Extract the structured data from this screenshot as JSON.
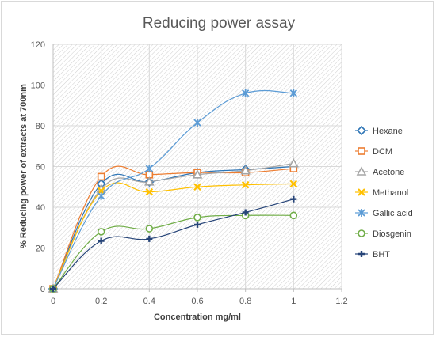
{
  "chart_data": {
    "type": "line",
    "title": "Reducing power assay",
    "xlabel": "Concentration mg/ml",
    "ylabel": "% Reducing power of extracts at 700nm",
    "xlim": [
      0,
      1.2
    ],
    "ylim": [
      0,
      120
    ],
    "xticks": [
      0,
      0.2,
      0.4,
      0.6,
      0.8,
      1,
      1.2
    ],
    "yticks": [
      0,
      20,
      40,
      60,
      80,
      100,
      120
    ],
    "smooth": true,
    "grid": true,
    "legend_position": "right",
    "x": [
      0,
      0.2,
      0.4,
      0.6,
      0.8,
      1
    ],
    "series": [
      {
        "name": "Hexane",
        "color": "#2e75b6",
        "marker": "diamond",
        "values": [
          0,
          51.5,
          52.5,
          57,
          58.5,
          60
        ]
      },
      {
        "name": "DCM",
        "color": "#ed7d31",
        "marker": "square",
        "values": [
          0,
          55,
          56,
          57,
          57,
          59
        ]
      },
      {
        "name": "Acetone",
        "color": "#a5a5a5",
        "marker": "triangle",
        "values": [
          0,
          49,
          52.5,
          56,
          58,
          61.5
        ]
      },
      {
        "name": "Methanol",
        "color": "#ffc000",
        "marker": "x",
        "values": [
          0,
          48,
          47.5,
          50,
          51,
          51.5
        ]
      },
      {
        "name": "Gallic acid",
        "color": "#5b9bd5",
        "marker": "star",
        "values": [
          0,
          45.5,
          59,
          81.5,
          96,
          96
        ]
      },
      {
        "name": "Diosgenin",
        "color": "#70ad47",
        "marker": "circle",
        "values": [
          0,
          28,
          29.5,
          35,
          36,
          36
        ]
      },
      {
        "name": "BHT",
        "color": "#264478",
        "marker": "plus",
        "values": [
          0,
          23.5,
          24.5,
          31.5,
          37.5,
          44
        ]
      }
    ]
  }
}
